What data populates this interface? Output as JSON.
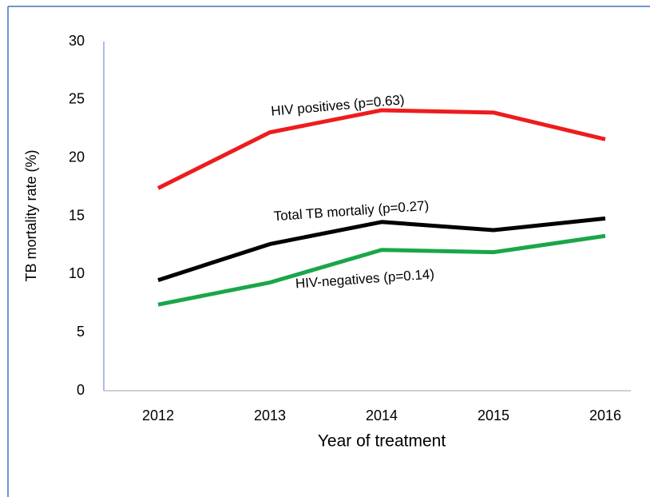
{
  "chart_data": {
    "type": "line",
    "xlabel": "Year of treatment",
    "ylabel": "TB mortality rate (%)",
    "categories": [
      "2012",
      "2013",
      "2014",
      "2015",
      "2016"
    ],
    "series": [
      {
        "name": "HIV positives (p=0.63)",
        "color": "#ee1c1c",
        "values": [
          17.4,
          22.2,
          24.1,
          23.9,
          21.6
        ]
      },
      {
        "name": "Total TB mortaliy (p=0.27)",
        "color": "#000000",
        "values": [
          9.5,
          12.6,
          14.5,
          13.8,
          14.8
        ]
      },
      {
        "name": "HIV-negatives (p=0.14)",
        "color": "#1aa64a",
        "values": [
          7.4,
          9.3,
          12.1,
          11.9,
          13.3
        ]
      }
    ],
    "ylim": [
      0,
      30
    ],
    "yticks": [
      0,
      5,
      10,
      15,
      20,
      25,
      30
    ],
    "grid": false
  }
}
